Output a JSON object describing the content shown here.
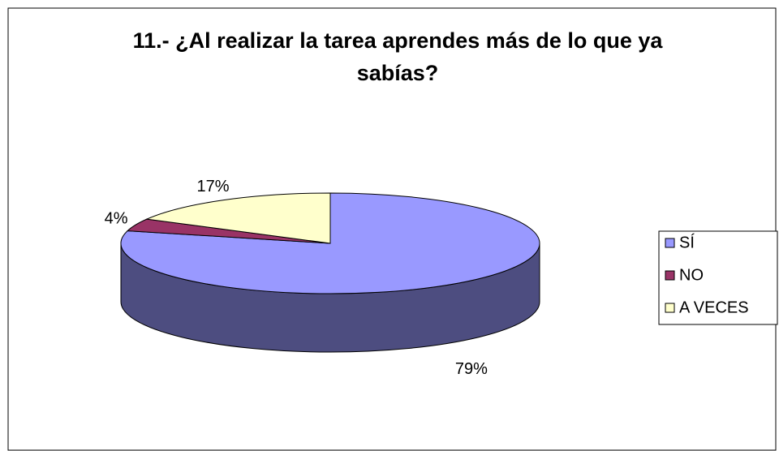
{
  "chart_data": {
    "type": "pie",
    "title": "11.- ¿Al realizar la tarea aprendes más de lo que ya sabías?",
    "categories": [
      "SÍ",
      "NO",
      "A VECES"
    ],
    "values": [
      79,
      4,
      17
    ],
    "value_labels": [
      "79%",
      "4%",
      "17%"
    ],
    "colors": [
      "#9999ff",
      "#993366",
      "#ffffcc"
    ],
    "legend": "right"
  }
}
